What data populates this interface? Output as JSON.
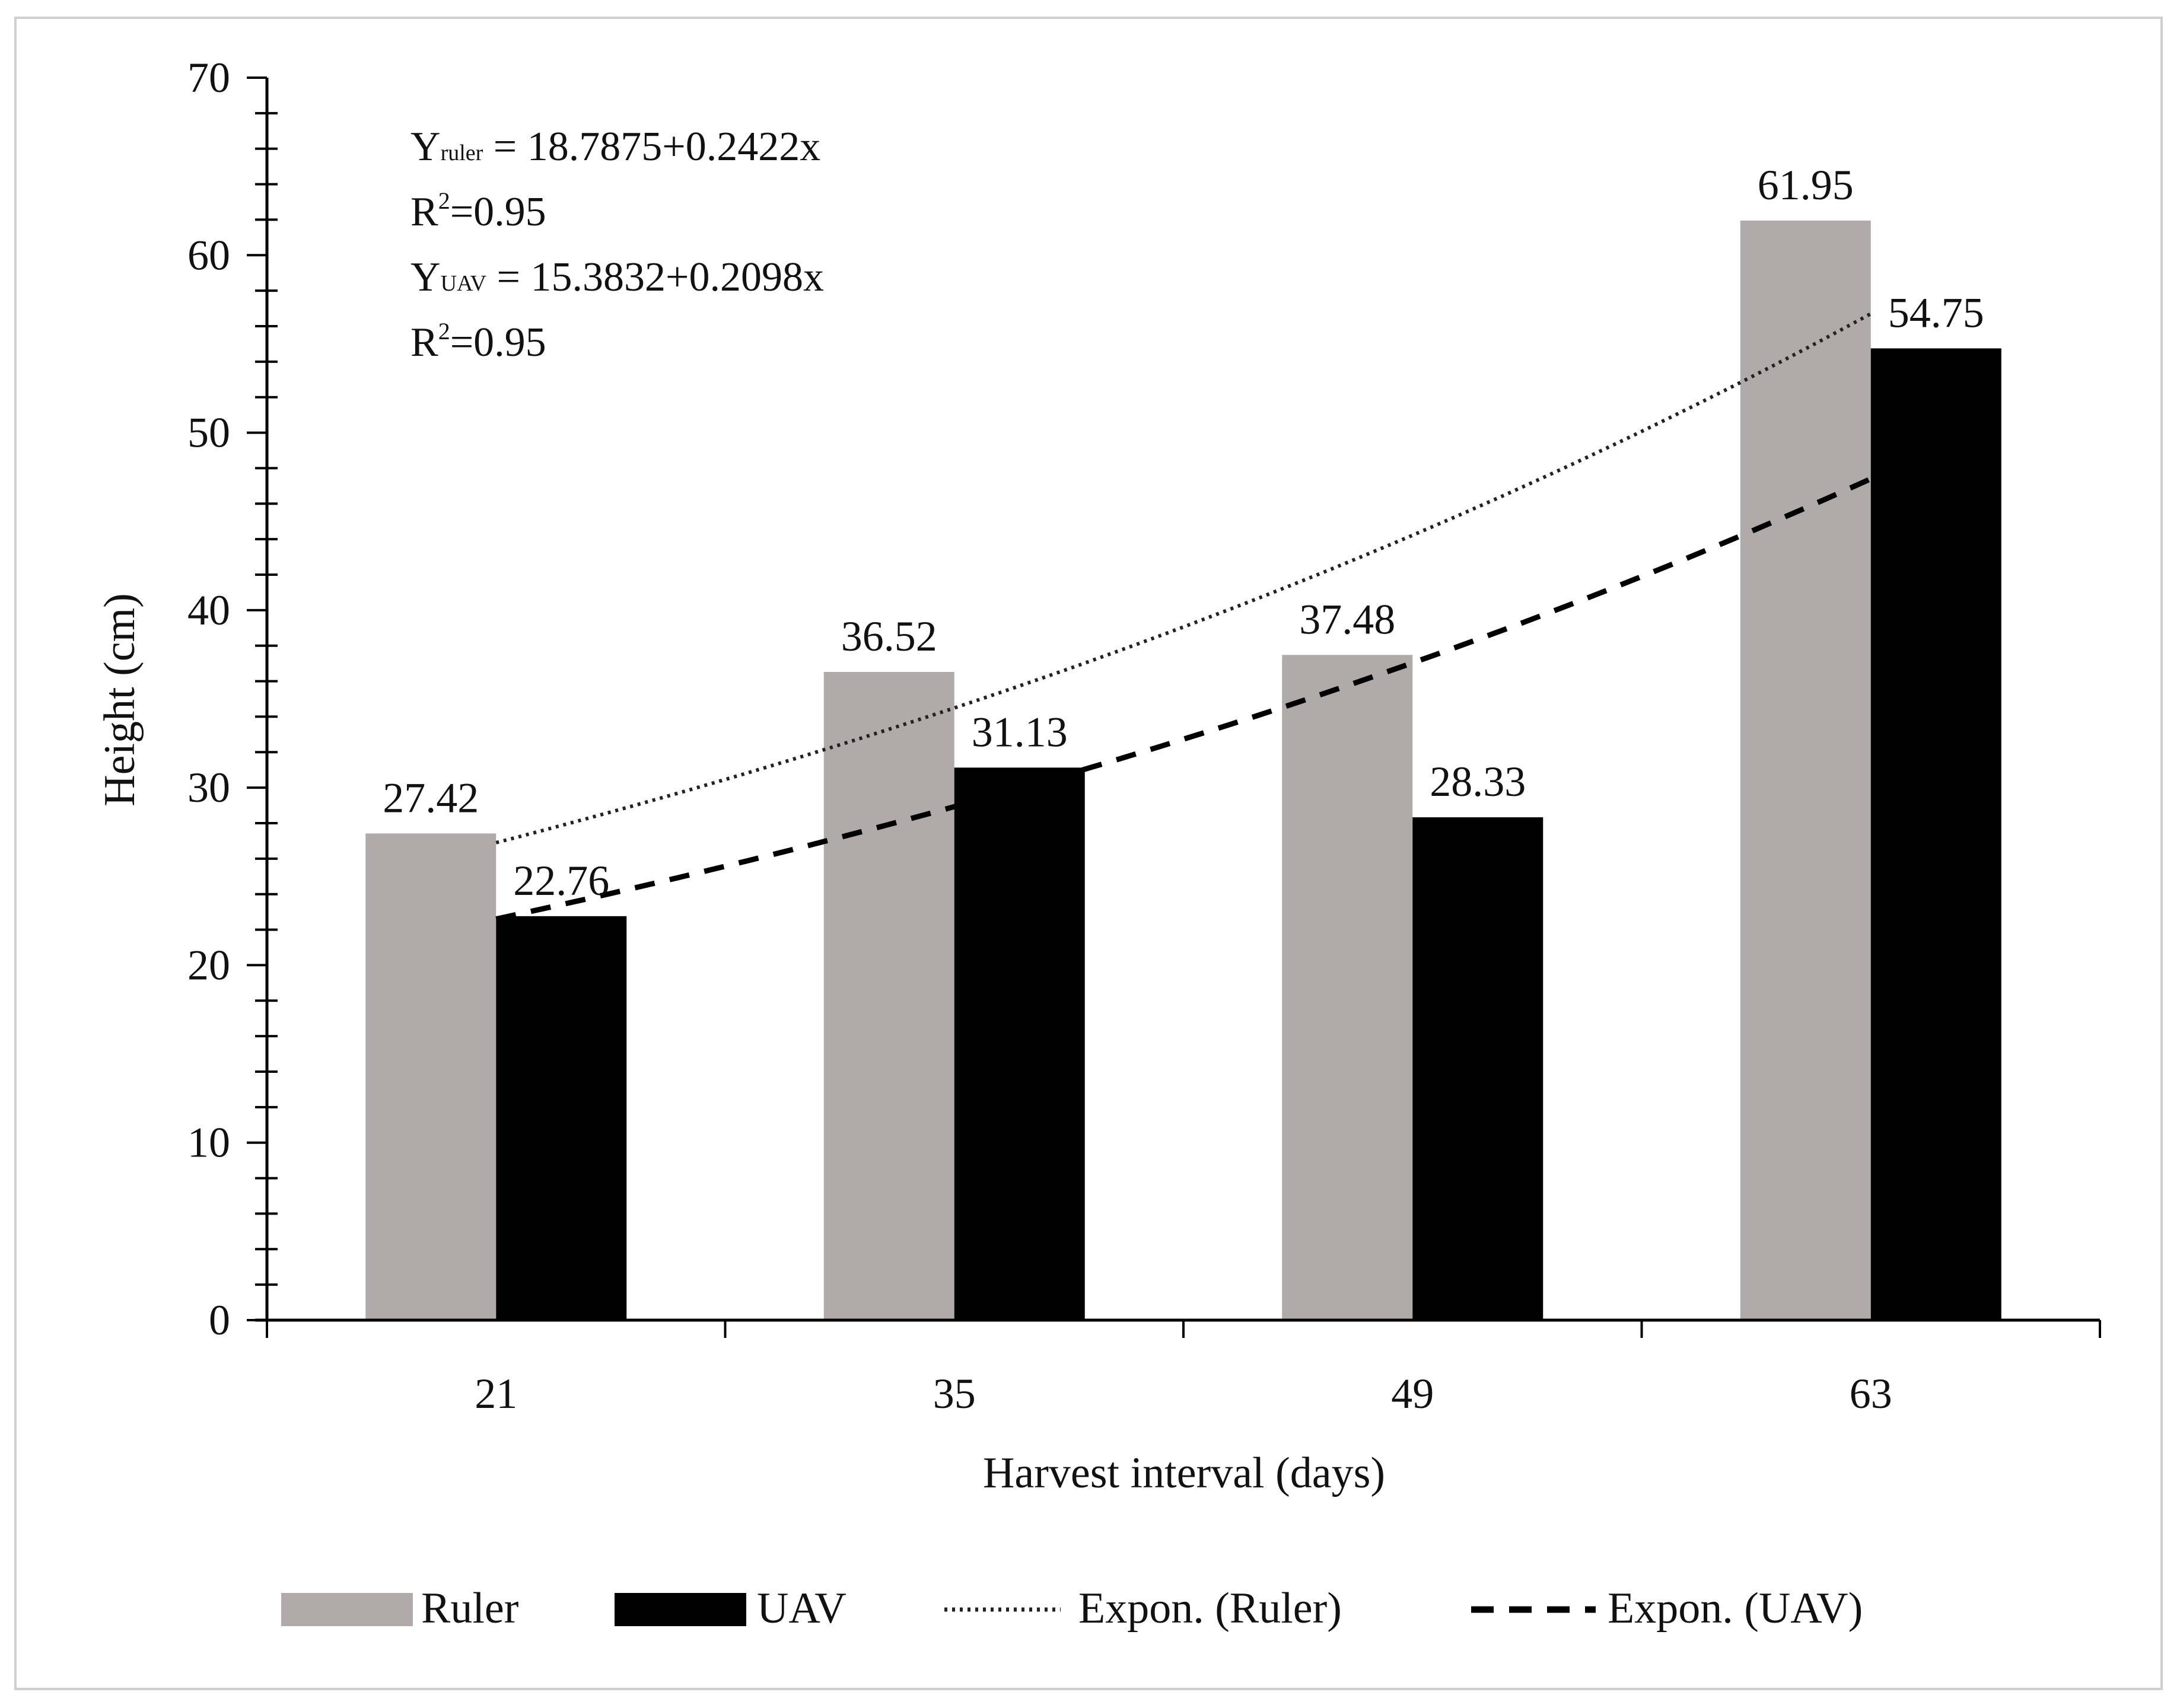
{
  "chart_data": {
    "type": "bar",
    "title": "",
    "xlabel": "Harvest interval (days)",
    "ylabel": "Height  (cm)",
    "ylim": [
      0,
      70
    ],
    "yticks": [
      0,
      10,
      20,
      30,
      40,
      50,
      60,
      70
    ],
    "categories": [
      "21",
      "35",
      "49",
      "63"
    ],
    "series": [
      {
        "name": "Ruler",
        "color": "#b0aaaa",
        "values": [
          27.42,
          36.52,
          37.48,
          61.95
        ]
      },
      {
        "name": "UAV",
        "color": "#000000",
        "values": [
          22.76,
          31.13,
          28.33,
          54.75
        ]
      }
    ],
    "data_labels": {
      "Ruler": [
        "27.42",
        "36.52",
        "37.48",
        "61.95"
      ],
      "UAV": [
        "22.76",
        "31.13",
        "28.33",
        "54.75"
      ]
    },
    "trendlines": [
      {
        "name": "Expon. (Ruler)",
        "style": "dotted",
        "of": "Ruler",
        "start": 26.9,
        "end": 56.7
      },
      {
        "name": "Expon. (UAV)",
        "style": "dashed",
        "of": "UAV",
        "start": 22.6,
        "end": 47.4
      }
    ],
    "annotations": {
      "eq_ruler": {
        "y": "Y",
        "sub": "ruler",
        "rest": " = 18.7875+0.2422x"
      },
      "r2_ruler": {
        "base": "R",
        "sup": "2",
        "rest": "=0.95"
      },
      "eq_uav": {
        "y": "Y",
        "sub": "UAV",
        "rest": " = 15.3832+0.2098x"
      },
      "r2_uav": {
        "base": "R",
        "sup": "2",
        "rest": "=0.95"
      }
    },
    "legend": {
      "position": "bottom",
      "items": [
        {
          "label": "Ruler",
          "kind": "box",
          "color": "#b0aaaa"
        },
        {
          "label": "UAV",
          "kind": "box",
          "color": "#000000"
        },
        {
          "label": "Expon. (Ruler)",
          "kind": "dotted"
        },
        {
          "label": "Expon. (UAV)",
          "kind": "dashed"
        }
      ]
    }
  }
}
